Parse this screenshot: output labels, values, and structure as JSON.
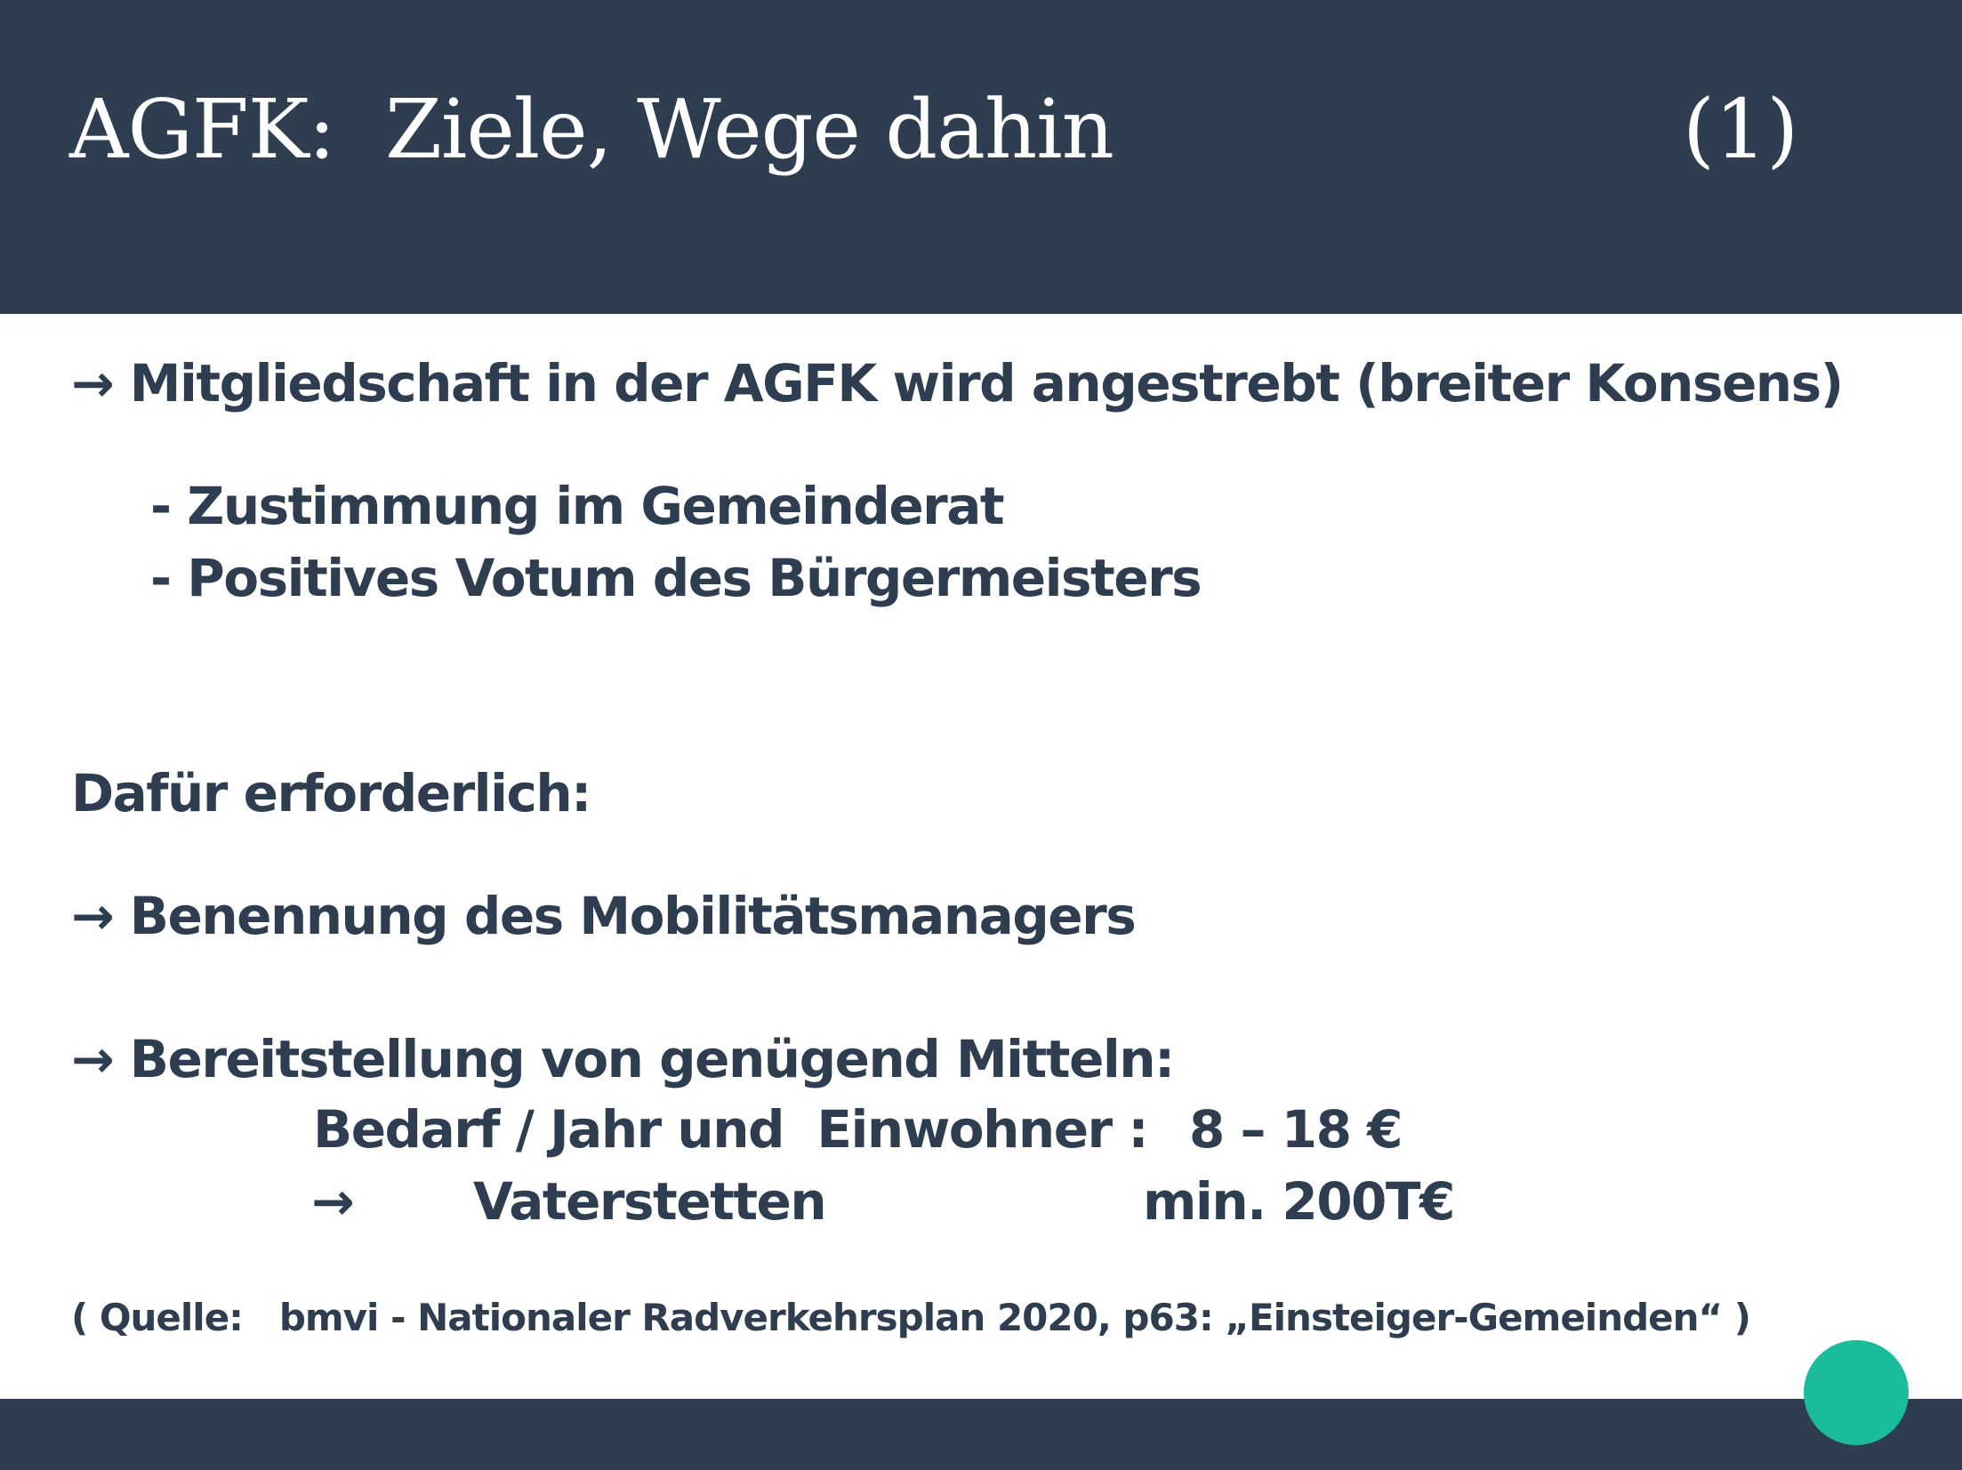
{
  "header": {
    "title": "AGFK:  Ziele, Wege dahin",
    "slide_number": "(1)"
  },
  "body": {
    "line1": "→ Mitgliedschaft in der AGFK wird angestrebt (breiter Konsens)",
    "sub1": "- Zustimmung im Gemeinderat",
    "sub2": "- Positives Votum des Bürgermeisters",
    "required_heading": "Dafür erforderlich:",
    "item1": "→ Benennung des Mobilitätsmanagers",
    "item2": "→ Bereitstellung von genügend Mitteln:",
    "need_label": "Bedarf / Jahr und  Einwohner :",
    "need_value": "8 – 18 €",
    "arrow": "→",
    "town": "Vaterstetten",
    "town_value": "min. 200T€",
    "source": "( Quelle:   bmvi - Nationaler Radverkehrsplan 2020, p63: „Einsteiger-Gemeinden“ )"
  },
  "colors": {
    "header_bg": "#2e3e50",
    "text": "#2e3e50",
    "accent": "#1abc9c"
  }
}
